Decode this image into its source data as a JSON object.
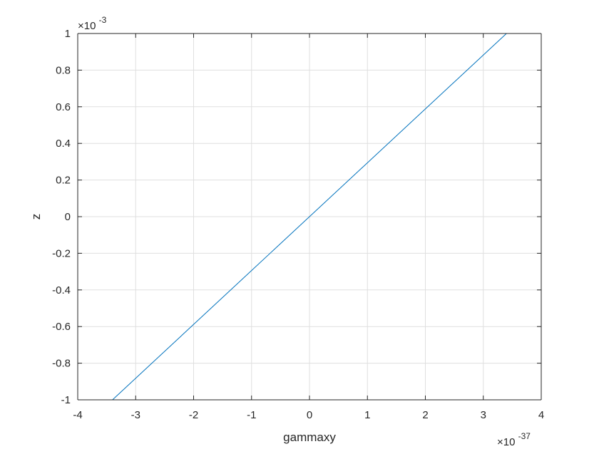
{
  "chart_data": {
    "type": "line",
    "xlabel": "gammaxy",
    "ylabel": "z",
    "x_multiplier": {
      "base": "×10",
      "exponent": "-37"
    },
    "y_multiplier": {
      "base": "×10",
      "exponent": "-3"
    },
    "xlim": [
      -4,
      4
    ],
    "ylim": [
      -1,
      1
    ],
    "x_ticks": [
      -4,
      -3,
      -2,
      -1,
      0,
      1,
      2,
      3,
      4
    ],
    "x_tick_labels": [
      "-4",
      "-3",
      "-2",
      "-1",
      "0",
      "1",
      "2",
      "3",
      "4"
    ],
    "y_ticks": [
      -1,
      -0.8,
      -0.6,
      -0.4,
      -0.2,
      0,
      0.2,
      0.4,
      0.6,
      0.8,
      1
    ],
    "y_tick_labels": [
      "-1",
      "-0.8",
      "-0.6",
      "-0.4",
      "-0.2",
      "0",
      "0.2",
      "0.4",
      "0.6",
      "0.8",
      "1"
    ],
    "grid": true,
    "box": true,
    "series": [
      {
        "color": "#0072BD",
        "x": [
          -3.4,
          3.4
        ],
        "y": [
          -1,
          1
        ]
      }
    ]
  }
}
